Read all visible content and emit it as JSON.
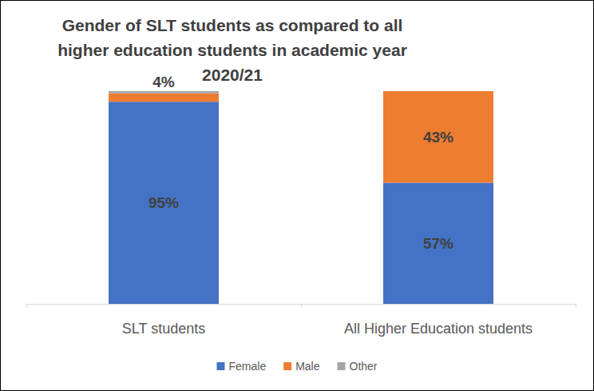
{
  "chart_data": {
    "type": "bar",
    "title": "Gender of SLT students as compared to all\nhigher education students in academic year\n2020/21",
    "categories": [
      "SLT students",
      "All Higher Education students"
    ],
    "series": [
      {
        "name": "Female",
        "color": "#4472c4",
        "values": [
          95,
          57
        ],
        "value_labels": [
          "95%",
          "57%"
        ],
        "data_labels": true
      },
      {
        "name": "Male",
        "color": "#ed7d31",
        "values": [
          4,
          43
        ],
        "value_labels": [
          "4%",
          "43%"
        ],
        "data_labels": true
      },
      {
        "name": "Other",
        "color": "#a5a5a5",
        "values": [
          1,
          0
        ],
        "data_labels": false
      }
    ],
    "stacked": true,
    "ylim": [
      0,
      100
    ],
    "grid": false,
    "legend": "bottom",
    "tick_labels": "x"
  }
}
